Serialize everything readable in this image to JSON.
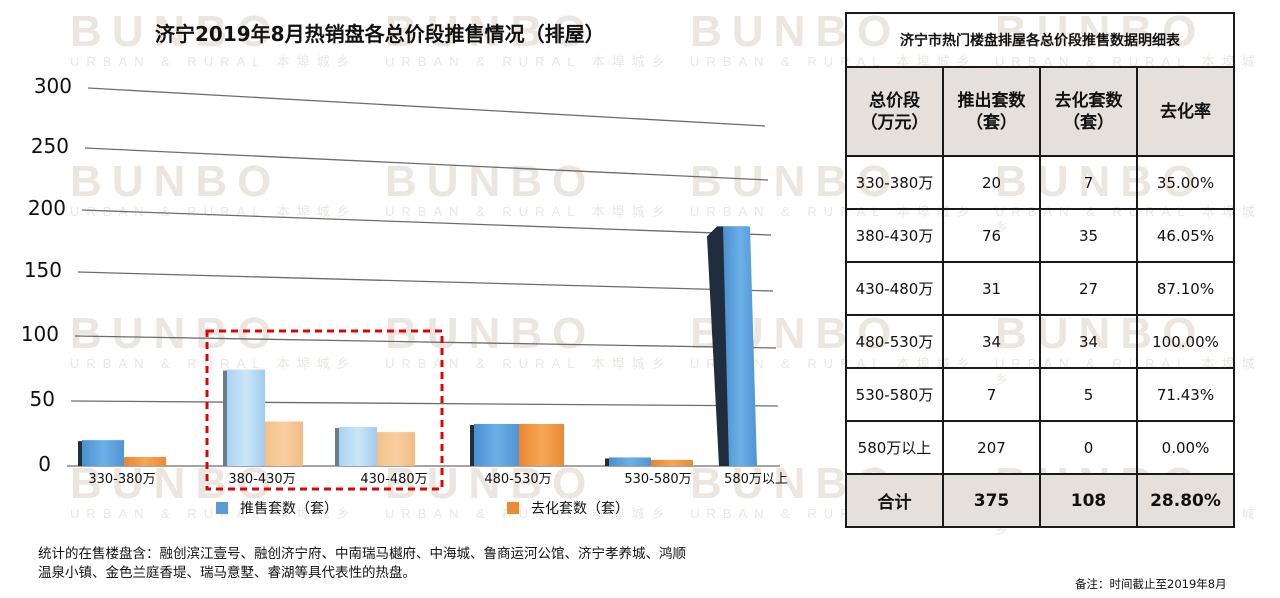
{
  "chart": {
    "title": "济宁2019年8月热销盘各总价段推售情况（排屋）",
    "y_ticks": [
      "300",
      "250",
      "200",
      "150",
      "100",
      "50",
      "0"
    ],
    "x_labels": [
      "330-380万",
      "380-430万",
      "430-480万",
      "480-530万",
      "530-580万",
      "580万以上"
    ],
    "legend": [
      {
        "label": "推售套数（套）",
        "color": "#5b9bd5"
      },
      {
        "label": "去化套数（套）",
        "color": "#ed8b35"
      }
    ],
    "highlight_box_color": "#e60000"
  },
  "chart_data": {
    "type": "bar",
    "title": "济宁2019年8月热销盘各总价段推售情况（排屋）",
    "xlabel": "",
    "ylabel": "",
    "ylim": [
      0,
      300
    ],
    "yticks": [
      0,
      50,
      100,
      150,
      200,
      250,
      300
    ],
    "grid": true,
    "legend_position": "bottom",
    "categories": [
      "330-380万",
      "380-430万",
      "430-480万",
      "480-530万",
      "530-580万",
      "580万以上"
    ],
    "series": [
      {
        "name": "推售套数（套）",
        "values": [
          20,
          76,
          31,
          34,
          7,
          207
        ]
      },
      {
        "name": "去化套数（套）",
        "values": [
          7,
          35,
          27,
          34,
          5,
          0
        ]
      }
    ],
    "annotations": [
      "红色虚线框标注 380-430万 与 430-480万 两个总价段"
    ]
  },
  "table": {
    "title": "济宁市热门楼盘排屋各总价段推售数据明细表",
    "headers": [
      {
        "line1": "总价段",
        "line2": "（万元）"
      },
      {
        "line1": "推出套数",
        "line2": "（套）"
      },
      {
        "line1": "去化套数",
        "line2": "（套）"
      },
      {
        "line1": "去化率",
        "line2": ""
      }
    ],
    "rows": [
      {
        "range": "330-380万",
        "launched": "20",
        "sold": "7",
        "rate": "35.00%"
      },
      {
        "range": "380-430万",
        "launched": "76",
        "sold": "35",
        "rate": "46.05%"
      },
      {
        "range": "430-480万",
        "launched": "31",
        "sold": "27",
        "rate": "87.10%"
      },
      {
        "range": "480-530万",
        "launched": "34",
        "sold": "34",
        "rate": "100.00%"
      },
      {
        "range": "530-580万",
        "launched": "7",
        "sold": "5",
        "rate": "71.43%"
      },
      {
        "range": "580万以上",
        "launched": "207",
        "sold": "0",
        "rate": "0.00%"
      }
    ],
    "total": {
      "label": "合计",
      "launched": "375",
      "sold": "108",
      "rate": "28.80%"
    }
  },
  "footnote": "统计的在售楼盘含：融创滨江壹号、融创济宁府、中南瑞马樾府、中海城、鲁商运河公馆、济宁孝养城、鸿顺温泉小镇、金色兰庭香堤、瑞马意墅、睿湖等具代表性的热盘。",
  "remark": "备注：时间截止至2019年8月",
  "watermark": {
    "brand": "BUNBO",
    "tagline": "URBAN & RURAL 本埠城乡"
  }
}
